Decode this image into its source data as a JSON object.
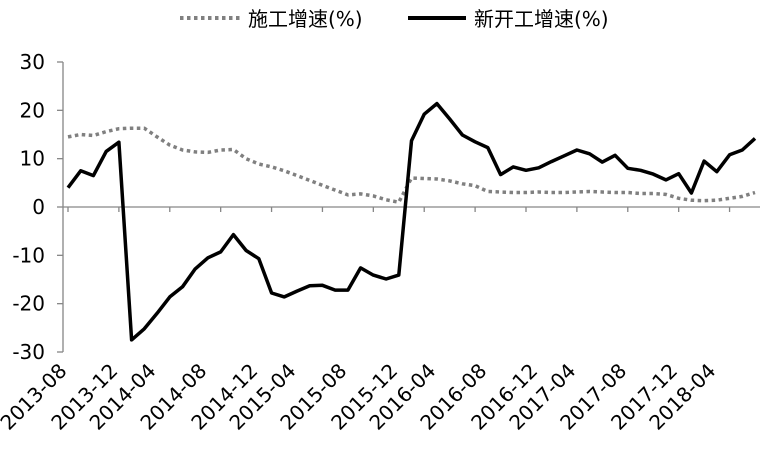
{
  "chart_data": {
    "type": "line",
    "title": "",
    "xlabel": "",
    "ylabel": "",
    "ylim": [
      -30,
      30
    ],
    "yticks": [
      -30,
      -20,
      -10,
      0,
      10,
      20,
      30
    ],
    "grid": false,
    "legend_position": "top",
    "x": [
      "2013-08",
      "2013-09",
      "2013-10",
      "2013-11",
      "2013-12",
      "2014-02",
      "2014-03",
      "2014-04",
      "2014-05",
      "2014-06",
      "2014-07",
      "2014-08",
      "2014-09",
      "2014-10",
      "2014-11",
      "2014-12",
      "2015-02",
      "2015-03",
      "2015-04",
      "2015-05",
      "2015-06",
      "2015-07",
      "2015-08",
      "2015-09",
      "2015-10",
      "2015-11",
      "2015-12",
      "2016-02",
      "2016-03",
      "2016-04",
      "2016-05",
      "2016-06",
      "2016-07",
      "2016-08",
      "2016-09",
      "2016-10",
      "2016-11",
      "2016-12",
      "2017-02",
      "2017-03",
      "2017-04",
      "2017-05",
      "2017-06",
      "2017-07",
      "2017-08",
      "2017-09",
      "2017-10",
      "2017-11",
      "2017-12",
      "2018-02",
      "2018-03",
      "2018-04",
      "2018-05",
      "2018-06",
      "2018-07"
    ],
    "tick_labels": [
      "2013-08",
      "2013-12",
      "2014-04",
      "2014-08",
      "2014-12",
      "2015-04",
      "2015-08",
      "2015-12",
      "2016-04",
      "2016-08",
      "2016-12",
      "2017-04",
      "2017-08",
      "2017-12",
      "2018-04"
    ],
    "series": [
      {
        "name": "施工增速(%)",
        "color": "#808080",
        "style": "dotted",
        "values": [
          14.5,
          15.0,
          14.8,
          15.6,
          16.2,
          16.3,
          16.3,
          14.5,
          12.8,
          11.8,
          11.4,
          11.3,
          11.8,
          11.9,
          10.0,
          8.9,
          8.3,
          7.5,
          6.5,
          5.5,
          4.5,
          3.5,
          2.5,
          2.7,
          2.3,
          1.5,
          1.0,
          6.0,
          5.9,
          5.8,
          5.4,
          4.8,
          4.4,
          3.2,
          3.1,
          3.0,
          3.0,
          3.1,
          3.0,
          3.0,
          3.1,
          3.2,
          3.1,
          3.0,
          3.0,
          2.8,
          2.8,
          2.6,
          1.8,
          1.4,
          1.3,
          1.4,
          1.8,
          2.2,
          3.0
        ]
      },
      {
        "name": "新开工增速(%)",
        "color": "#000000",
        "style": "solid",
        "values": [
          4.0,
          7.5,
          6.5,
          11.5,
          13.4,
          -27.5,
          -25.2,
          -22.0,
          -18.6,
          -16.5,
          -12.8,
          -10.5,
          -9.3,
          -5.7,
          -9.0,
          -10.7,
          -17.8,
          -18.6,
          -17.4,
          -16.3,
          -16.2,
          -17.2,
          -17.2,
          -12.6,
          -14.1,
          -14.9,
          -14.1,
          13.7,
          19.2,
          21.4,
          18.2,
          14.9,
          13.5,
          12.3,
          6.7,
          8.3,
          7.6,
          8.1,
          9.4,
          10.6,
          11.8,
          11.0,
          9.3,
          10.7,
          8.0,
          7.6,
          6.8,
          5.6,
          6.9,
          2.9,
          9.5,
          7.3,
          10.8,
          11.8,
          14.2
        ]
      }
    ]
  }
}
